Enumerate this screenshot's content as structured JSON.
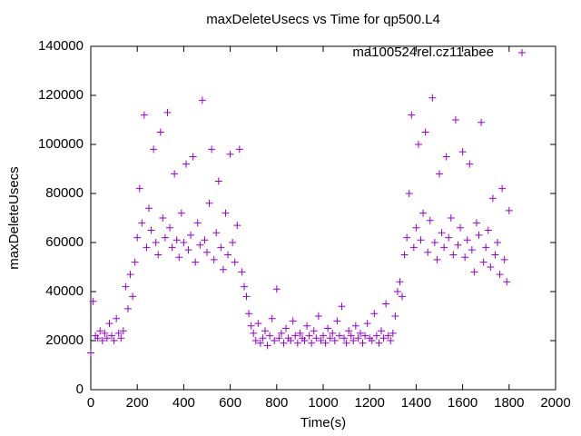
{
  "chart_data": {
    "type": "scatter",
    "title": "maxDeleteUsecs vs Time for qp500.L4",
    "x_label": "Time(s)",
    "y_label": "maxDeleteUsecs",
    "xlim": [
      0,
      2000
    ],
    "xticks": [
      0,
      200,
      400,
      600,
      800,
      1000,
      1200,
      1400,
      1600,
      1800,
      2000
    ],
    "ylim": [
      0,
      140000
    ],
    "yticks": [
      0,
      20000,
      40000,
      60000,
      80000,
      100000,
      120000,
      140000
    ],
    "grid": false,
    "legend": "top-right",
    "x": [
      0,
      10,
      20,
      30,
      40,
      50,
      60,
      70,
      80,
      90,
      100,
      110,
      120,
      130,
      140,
      150,
      160,
      170,
      180,
      190,
      200,
      210,
      220,
      230,
      240,
      250,
      260,
      270,
      280,
      290,
      300,
      310,
      320,
      330,
      340,
      350,
      360,
      370,
      380,
      390,
      400,
      410,
      420,
      430,
      440,
      450,
      460,
      470,
      480,
      490,
      500,
      510,
      520,
      530,
      540,
      550,
      560,
      570,
      580,
      590,
      600,
      610,
      620,
      630,
      640,
      650,
      660,
      670,
      680,
      690,
      700,
      710,
      720,
      730,
      740,
      750,
      760,
      770,
      780,
      790,
      800,
      810,
      820,
      830,
      840,
      850,
      860,
      870,
      880,
      890,
      900,
      910,
      920,
      930,
      940,
      950,
      960,
      970,
      980,
      990,
      1000,
      1010,
      1020,
      1030,
      1040,
      1050,
      1060,
      1070,
      1080,
      1090,
      1100,
      1110,
      1120,
      1130,
      1140,
      1150,
      1160,
      1170,
      1180,
      1190,
      1200,
      1210,
      1220,
      1230,
      1240,
      1250,
      1260,
      1270,
      1280,
      1290,
      1300,
      1310,
      1320,
      1330,
      1340,
      1350,
      1360,
      1370,
      1380,
      1390,
      1400,
      1410,
      1420,
      1430,
      1440,
      1450,
      1460,
      1470,
      1480,
      1490,
      1500,
      1510,
      1520,
      1530,
      1540,
      1550,
      1560,
      1570,
      1580,
      1590,
      1600,
      1610,
      1620,
      1630,
      1640,
      1650,
      1660,
      1670,
      1680,
      1690,
      1700,
      1710,
      1720,
      1730,
      1740,
      1750,
      1760,
      1770,
      1780,
      1790,
      1800
    ],
    "series": [
      {
        "name": "ma100524rel.cz11abee",
        "color": "#9400d3",
        "values": [
          15000,
          36000,
          22000,
          21000,
          24000,
          20000,
          23000,
          21000,
          27000,
          22000,
          20000,
          29000,
          23000,
          21000,
          24000,
          42000,
          33000,
          47000,
          38000,
          52000,
          62000,
          82000,
          68000,
          112000,
          58000,
          74000,
          65000,
          98000,
          60000,
          55000,
          105000,
          70000,
          62000,
          113000,
          66000,
          58000,
          88000,
          61000,
          54000,
          72000,
          60000,
          92000,
          57000,
          63000,
          95000,
          52000,
          68000,
          59000,
          118000,
          61000,
          56000,
          76000,
          98000,
          53000,
          64000,
          85000,
          58000,
          49000,
          72000,
          55000,
          96000,
          60000,
          52000,
          67000,
          98000,
          48000,
          42000,
          38000,
          31000,
          26000,
          23000,
          20000,
          27000,
          19000,
          21000,
          24000,
          18000,
          22000,
          29000,
          20000,
          41000,
          21000,
          23000,
          19000,
          25000,
          21000,
          20000,
          28000,
          22000,
          19000,
          23000,
          21000,
          20000,
          26000,
          22000,
          19000,
          24000,
          21000,
          30000,
          20000,
          22000,
          19000,
          25000,
          21000,
          23000,
          20000,
          28000,
          22000,
          34000,
          21000,
          19000,
          24000,
          22000,
          20000,
          26000,
          21000,
          23000,
          19000,
          22000,
          27000,
          21000,
          20000,
          31000,
          22000,
          19000,
          24000,
          21000,
          35000,
          22000,
          20000,
          23000,
          30000,
          40000,
          44000,
          38000,
          55000,
          62000,
          80000,
          112000,
          58000,
          66000,
          100000,
          61000,
          72000,
          105000,
          56000,
          69000,
          119000,
          60000,
          53000,
          88000,
          64000,
          58000,
          95000,
          62000,
          70000,
          55000,
          110000,
          59000,
          66000,
          97000,
          54000,
          61000,
          92000,
          57000,
          48000,
          68000,
          63000,
          109000,
          52000,
          58000,
          65000,
          50000,
          78000,
          55000,
          60000,
          47000,
          82000,
          53000,
          44000,
          73000
        ]
      }
    ]
  }
}
